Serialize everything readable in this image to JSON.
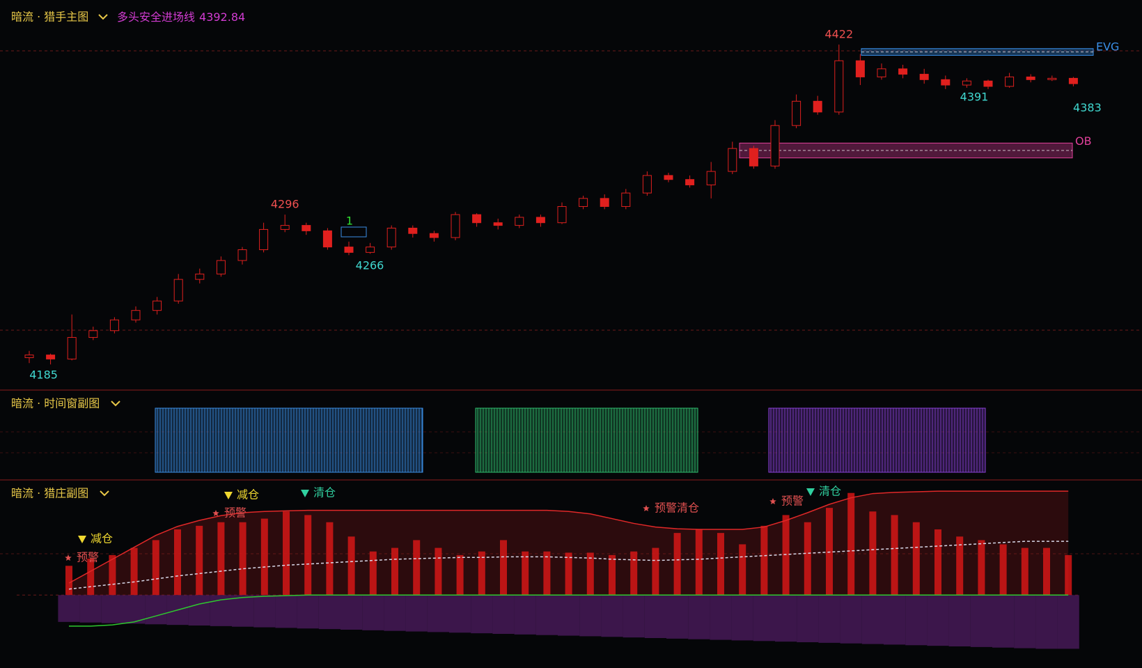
{
  "chart_data": [
    {
      "type": "candlestick",
      "title": "暗流 · 猎手主图",
      "entry_line": {
        "label": "多头安全进场线",
        "value": 4392.84,
        "color": "#d23cd2"
      },
      "ylim": [
        4166,
        4455
      ],
      "color": "#e0201e",
      "open": [
        4190,
        4192,
        4189,
        4205,
        4210,
        4218,
        4225,
        4232,
        4248,
        4252,
        4262,
        4270,
        4285,
        4288,
        4284,
        4272,
        4268,
        4272,
        4286,
        4282,
        4279,
        4296,
        4290,
        4288,
        4294,
        4290,
        4302,
        4308,
        4302,
        4312,
        4325,
        4322,
        4318,
        4328,
        4345,
        4332,
        4362,
        4380,
        4372,
        4410,
        4398,
        4404,
        4400,
        4396,
        4392,
        4395,
        4391,
        4398,
        4396,
        4397
      ],
      "high": [
        4195,
        4193,
        4222,
        4213,
        4220,
        4228,
        4235,
        4252,
        4256,
        4265,
        4272,
        4290,
        4296,
        4290,
        4286,
        4276,
        4275,
        4288,
        4288,
        4284,
        4298,
        4297,
        4293,
        4296,
        4296,
        4305,
        4310,
        4311,
        4315,
        4328,
        4327,
        4325,
        4335,
        4350,
        4347,
        4366,
        4385,
        4384,
        4422,
        4415,
        4408,
        4407,
        4404,
        4399,
        4397,
        4396,
        4401,
        4400,
        4399,
        4398
      ],
      "low": [
        4186,
        4185,
        4188,
        4203,
        4208,
        4216,
        4222,
        4230,
        4245,
        4250,
        4259,
        4268,
        4283,
        4281,
        4270,
        4266,
        4267,
        4270,
        4279,
        4276,
        4277,
        4287,
        4285,
        4286,
        4287,
        4289,
        4300,
        4300,
        4300,
        4310,
        4320,
        4316,
        4308,
        4326,
        4330,
        4330,
        4360,
        4370,
        4370,
        4392,
        4396,
        4397,
        4393,
        4389,
        4390,
        4389,
        4390,
        4394,
        4395,
        4391
      ],
      "close": [
        4192,
        4189,
        4205,
        4210,
        4218,
        4225,
        4232,
        4248,
        4252,
        4262,
        4270,
        4285,
        4288,
        4284,
        4272,
        4268,
        4272,
        4286,
        4282,
        4279,
        4296,
        4290,
        4288,
        4294,
        4290,
        4302,
        4308,
        4302,
        4312,
        4325,
        4322,
        4318,
        4328,
        4345,
        4332,
        4362,
        4380,
        4372,
        4410,
        4398,
        4404,
        4400,
        4396,
        4392,
        4395,
        4391,
        4398,
        4396,
        4397,
        4393
      ],
      "price_labels": [
        4422,
        4296,
        4266,
        4185,
        4391,
        4383
      ],
      "marker_label": "1",
      "zones": [
        {
          "name": "EVG",
          "color": "#3a8ee6",
          "top": 4419,
          "bottom": 4414
        },
        {
          "name": "OB",
          "color": "#e0409a",
          "top": 4349,
          "bottom": 4338
        }
      ]
    },
    {
      "type": "time-window",
      "title": "暗流 · 时间窗副图"
    },
    {
      "type": "histogram",
      "title": "暗流 · 猎庄副图",
      "ylim": [
        -100,
        180
      ],
      "series": [
        {
          "type": "bar",
          "color": "#c81414",
          "values": [
            49,
            61,
            67,
            79,
            92,
            110,
            116,
            122,
            122,
            128,
            140,
            134,
            122,
            98,
            73,
            79,
            92,
            79,
            67,
            73,
            92,
            73,
            73,
            71,
            71,
            67,
            73,
            79,
            104,
            110,
            104,
            85,
            116,
            134,
            122,
            146,
            171,
            140,
            134,
            122,
            110,
            98,
            92,
            85,
            79,
            79,
            67
          ]
        },
        {
          "type": "bar",
          "color": "#4a1a5c",
          "values": [
            -45,
            -46,
            -47,
            -48,
            -49,
            -50,
            -51,
            -52,
            -53,
            -54,
            -55,
            -56,
            -57,
            -58,
            -59,
            -60,
            -61,
            -62,
            -63,
            -64,
            -65,
            -66,
            -67,
            -68,
            -69,
            -70,
            -71,
            -72,
            -73,
            -74,
            -75,
            -76,
            -77,
            -78,
            -79,
            -80,
            -81,
            -82,
            -83,
            -84,
            -85,
            -86,
            -87,
            -88,
            -89,
            -90,
            -90
          ]
        },
        {
          "type": "area",
          "color": "#e02828",
          "values": [
            20,
            40,
            60,
            80,
            100,
            115,
            125,
            133,
            138,
            140,
            141,
            142,
            142,
            142,
            142,
            142,
            142,
            142,
            142,
            142,
            142,
            142,
            142,
            140,
            136,
            128,
            120,
            114,
            111,
            110,
            110,
            110,
            114,
            125,
            138,
            152,
            163,
            170,
            172,
            173,
            174,
            174,
            174,
            174,
            174,
            174,
            174
          ]
        },
        {
          "type": "line",
          "color": "#d8d8e8",
          "values": [
            10,
            14,
            18,
            22,
            27,
            32,
            36,
            40,
            44,
            47,
            50,
            52,
            54,
            56,
            58,
            60,
            61,
            62,
            63,
            63,
            64,
            64,
            64,
            63,
            62,
            60,
            59,
            58,
            59,
            60,
            62,
            64,
            66,
            68,
            70,
            72,
            74,
            76,
            78,
            80,
            82,
            84,
            86,
            88,
            90,
            90,
            90
          ]
        },
        {
          "type": "line",
          "color": "#2ec82e",
          "values": [
            -52,
            -52,
            -50,
            -45,
            -35,
            -25,
            -15,
            -8,
            -4,
            -2,
            -1,
            0,
            0,
            0,
            0,
            0,
            0,
            0,
            0,
            0,
            0,
            0,
            0,
            0,
            0,
            0,
            0,
            0,
            0,
            0,
            0,
            0,
            0,
            0,
            0,
            0,
            0,
            0,
            0,
            0,
            0,
            0,
            0,
            0,
            0,
            0,
            0
          ]
        }
      ],
      "signals": [
        {
          "text": "预警",
          "marker": "star",
          "color": "#e05050"
        },
        {
          "text": "减仓",
          "marker": "triangle",
          "color": "#f0d830"
        },
        {
          "text": "预警",
          "marker": "star",
          "color": "#e05050"
        },
        {
          "text": "减仓",
          "marker": "triangle",
          "color": "#f0d830"
        },
        {
          "text": "清仓",
          "marker": "triangle",
          "color": "#30d0a0"
        },
        {
          "text": "预警清仓",
          "marker": "star",
          "color": "#e05050"
        },
        {
          "text": "预警",
          "marker": "star",
          "color": "#e05050"
        },
        {
          "text": "清仓",
          "marker": "triangle",
          "color": "#30d0a0"
        }
      ]
    }
  ]
}
